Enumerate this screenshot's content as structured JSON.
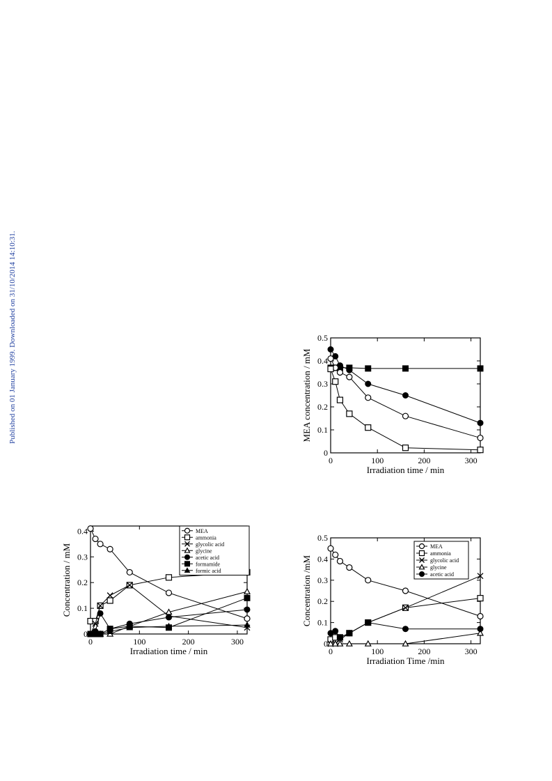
{
  "sidebar": {
    "text": "Published on 01 January 1999. Downloaded on 31/10/2014 14:10:31."
  },
  "chart_data": [
    {
      "type": "line",
      "xlabel": "Irradiation time  / min",
      "ylabel": "MEA concentration  / mM",
      "xlim": [
        0,
        320
      ],
      "ylim": [
        0,
        0.5
      ],
      "xticks": [
        0,
        100,
        200,
        300
      ],
      "yticks": [
        0,
        0.1,
        0.2,
        0.3,
        0.4,
        0.5
      ],
      "xtick_labels": [
        "0",
        "100",
        "200",
        "300"
      ],
      "ytick_labels": [
        "0",
        "0.1",
        "0.2",
        "0.3",
        "0.4",
        "0.5"
      ],
      "legend": null,
      "series": [
        {
          "marker": "filled-square",
          "x": [
            0,
            10,
            20,
            40,
            80,
            160,
            320
          ],
          "y": [
            0.37,
            0.37,
            0.37,
            0.37,
            0.367,
            0.367,
            0.367
          ]
        },
        {
          "marker": "filled-circle",
          "x": [
            0,
            10,
            20,
            40,
            80,
            160,
            320
          ],
          "y": [
            0.45,
            0.42,
            0.38,
            0.36,
            0.3,
            0.25,
            0.13
          ]
        },
        {
          "marker": "open-circle",
          "x": [
            0,
            10,
            20,
            40,
            80,
            160,
            320
          ],
          "y": [
            0.41,
            0.37,
            0.35,
            0.33,
            0.24,
            0.16,
            0.065
          ]
        },
        {
          "marker": "open-square",
          "x": [
            0,
            10,
            20,
            40,
            80,
            160,
            320
          ],
          "y": [
            0.365,
            0.31,
            0.23,
            0.17,
            0.11,
            0.022,
            0.013
          ]
        }
      ]
    },
    {
      "type": "line",
      "xlabel": "Irradiation time  / min",
      "ylabel": "Concentration  / mM",
      "xlim": [
        0,
        320
      ],
      "ylim": [
        0,
        0.42
      ],
      "xticks": [
        0,
        100,
        200,
        300
      ],
      "yticks": [
        0,
        0.1,
        0.2,
        0.3,
        0.4
      ],
      "xtick_labels": [
        "0",
        "100",
        "200",
        "300"
      ],
      "ytick_labels": [
        "0",
        "0.1",
        "0.2",
        "0.3",
        "0.4"
      ],
      "legend": "top-right",
      "series": [
        {
          "name": "MEA",
          "marker": "open-circle",
          "x": [
            0,
            10,
            20,
            40,
            80,
            160,
            320
          ],
          "y": [
            0.41,
            0.37,
            0.35,
            0.33,
            0.24,
            0.16,
            0.06
          ]
        },
        {
          "name": "ammonia",
          "marker": "open-square",
          "x": [
            0,
            10,
            20,
            40,
            80,
            160,
            320
          ],
          "y": [
            0.05,
            0.05,
            0.11,
            0.13,
            0.19,
            0.22,
            0.24
          ]
        },
        {
          "name": "glycolic acid",
          "marker": "cross",
          "x": [
            0,
            10,
            20,
            40,
            80,
            160,
            320
          ],
          "y": [
            0.0,
            0.04,
            0.11,
            0.15,
            0.19,
            0.07,
            0.025
          ]
        },
        {
          "name": "glycine",
          "marker": "open-triangle",
          "x": [
            0,
            10,
            20,
            40,
            80,
            160,
            320
          ],
          "y": [
            0.0,
            0.0,
            0.0,
            0.0,
            0.03,
            0.085,
            0.165
          ]
        },
        {
          "name": "acetic acid",
          "marker": "filled-circle",
          "x": [
            0,
            10,
            20,
            40,
            80,
            160,
            320
          ],
          "y": [
            0.0,
            0.01,
            0.08,
            0.02,
            0.04,
            0.065,
            0.095
          ]
        },
        {
          "name": "formamide",
          "marker": "filled-square",
          "x": [
            0,
            10,
            20,
            40,
            80,
            160,
            320
          ],
          "y": [
            0.0,
            0.0,
            0.0,
            0.02,
            0.03,
            0.025,
            0.14
          ]
        },
        {
          "name": "formic acid",
          "marker": "filled-triangle",
          "x": [
            0,
            10,
            20,
            40,
            80,
            160,
            320
          ],
          "y": [
            0.0,
            0.0,
            0.0,
            0.01,
            0.025,
            0.03,
            0.035
          ]
        }
      ]
    },
    {
      "type": "line",
      "xlabel": "Irradiation Time /min",
      "ylabel": "Concentration /mM",
      "xlim": [
        0,
        320
      ],
      "ylim": [
        0,
        0.5
      ],
      "xticks": [
        0,
        100,
        200,
        300
      ],
      "yticks": [
        0,
        0.1,
        0.2,
        0.3,
        0.4,
        0.5
      ],
      "xtick_labels": [
        "0",
        "100",
        "200",
        "300"
      ],
      "ytick_labels": [
        "0",
        "0.1",
        "0.2",
        "0.3",
        "0.4",
        "0.5"
      ],
      "legend": "top-right",
      "series": [
        {
          "name": "MEA",
          "marker": "open-circle",
          "x": [
            0,
            10,
            20,
            40,
            80,
            160,
            320
          ],
          "y": [
            0.45,
            0.42,
            0.39,
            0.36,
            0.3,
            0.25,
            0.13
          ]
        },
        {
          "name": "ammonia",
          "marker": "open-square",
          "x": [
            0,
            10,
            20,
            40,
            80,
            160,
            320
          ],
          "y": [
            0.02,
            0.03,
            0.03,
            0.05,
            0.1,
            0.17,
            0.215
          ]
        },
        {
          "name": "glycolic acid",
          "marker": "cross",
          "x": [
            0,
            10,
            20,
            40,
            80,
            160,
            320
          ],
          "y": [
            0.0,
            0.0,
            0.02,
            0.05,
            0.1,
            0.17,
            0.32
          ]
        },
        {
          "name": "glycine",
          "marker": "open-triangle",
          "x": [
            0,
            10,
            20,
            40,
            80,
            160,
            320
          ],
          "y": [
            0.0,
            0.0,
            0.0,
            0.0,
            0.0,
            0.0,
            0.05
          ]
        },
        {
          "name": "acetic acid",
          "marker": "filled-circle",
          "x": [
            0,
            10,
            20,
            40,
            80,
            160,
            320
          ],
          "y": [
            0.05,
            0.06,
            0.03,
            0.05,
            0.1,
            0.07,
            0.07
          ]
        }
      ]
    }
  ]
}
